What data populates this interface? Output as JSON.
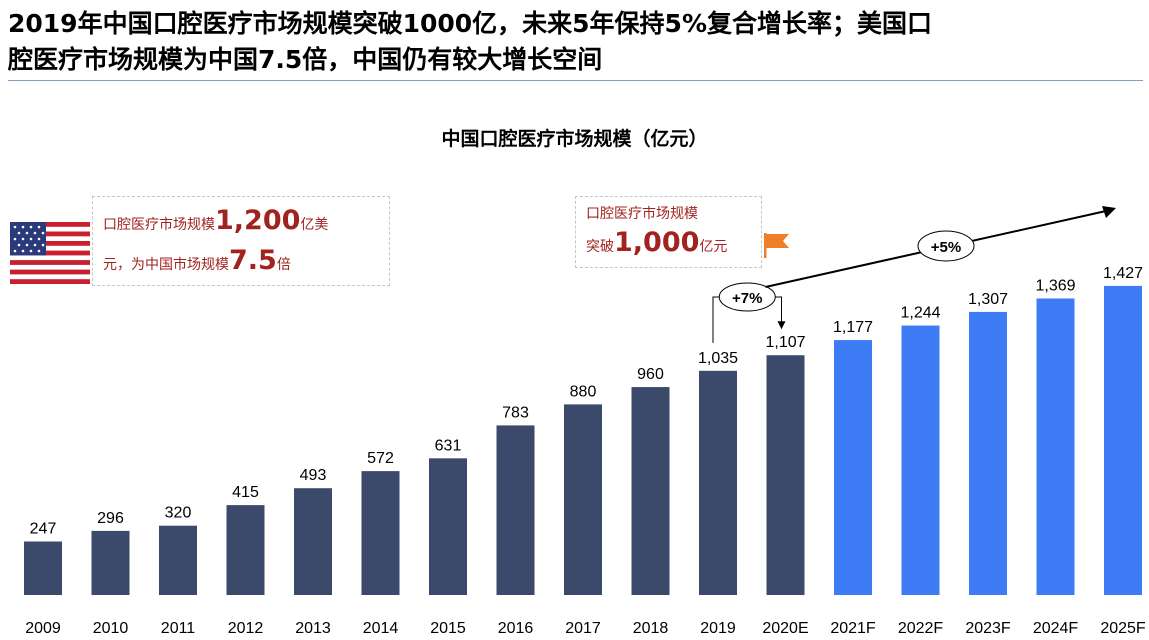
{
  "header": {
    "line1": "2019年中国口腔医疗市场规模突破1000亿，未来5年保持5%复合增长率；美国口",
    "line2": "腔医疗市场规模为中国7.5倍，中国仍有较大增长空间"
  },
  "callouts": {
    "us": {
      "prefix": "口腔医疗市场规模",
      "amount": "1,200",
      "unit": "亿美",
      "line2_prefix": "元，为中国市场规模",
      "multiple": "7.5",
      "line2_suffix": "倍"
    },
    "cn": {
      "line1": "口腔医疗市场规模",
      "prefix": "突破",
      "amount": "1,000",
      "suffix": "亿元"
    }
  },
  "growth_labels": {
    "historical": "+7%",
    "forecast": "+5%"
  },
  "colors": {
    "historical": "#3b4a6b",
    "forecast": "#3d7cf5",
    "callout_text": "#a1231f",
    "flag": "#f07f2a"
  },
  "icons": [
    "us-flag-icon",
    "orange-flag-icon",
    "arrow-icon"
  ],
  "chart_data": {
    "type": "bar",
    "title": "中国口腔医疗市场规模（亿元）",
    "xlabel": "",
    "ylabel": "",
    "grid": false,
    "categories": [
      "2009",
      "2010",
      "2011",
      "2012",
      "2013",
      "2014",
      "2015",
      "2016",
      "2017",
      "2018",
      "2019",
      "2020E",
      "2021F",
      "2022F",
      "2023F",
      "2024F",
      "2025F"
    ],
    "values": [
      247,
      296,
      320,
      415,
      493,
      572,
      631,
      783,
      880,
      960,
      1035,
      1107,
      1177,
      1244,
      1307,
      1369,
      1427
    ],
    "data_labels": [
      "247",
      "296",
      "320",
      "415",
      "493",
      "572",
      "631",
      "783",
      "880",
      "960",
      "1,035",
      "1,107",
      "1,177",
      "1,244",
      "1,307",
      "1,369",
      "1,427"
    ],
    "forecast_from_index": 12,
    "ylim": [
      0,
      1500
    ]
  }
}
